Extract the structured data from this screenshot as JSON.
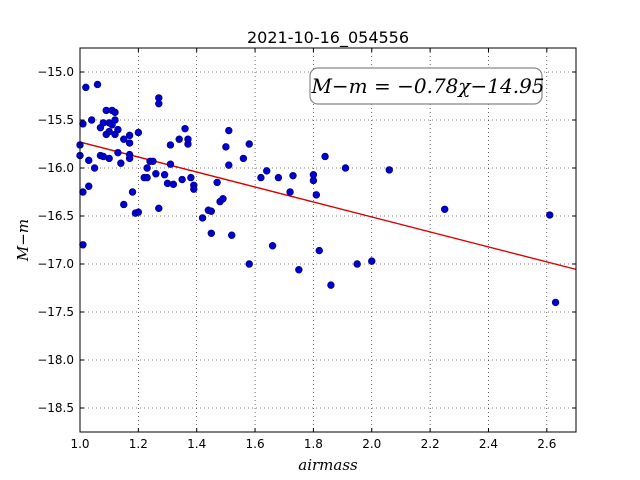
{
  "chart_data": {
    "type": "scatter",
    "title": "2021-10-16_054556",
    "xlabel": "airmass",
    "ylabel": "M−m",
    "xlim": [
      1.0,
      2.7
    ],
    "ylim": [
      -18.75,
      -14.75
    ],
    "y_inverted": true,
    "grid": true,
    "xticks": [
      1.0,
      1.2,
      1.4,
      1.6,
      1.8,
      2.0,
      2.2,
      2.4,
      2.6
    ],
    "yticks": [
      -15.0,
      -15.5,
      -16.0,
      -16.5,
      -17.0,
      -17.5,
      -18.0,
      -18.5
    ],
    "xtick_labels": [
      "1.0",
      "1.2",
      "1.4",
      "1.6",
      "1.8",
      "2.0",
      "2.2",
      "2.4",
      "2.6"
    ],
    "ytick_labels": [
      "−15.0",
      "−15.5",
      "−16.0",
      "−16.5",
      "−17.0",
      "−17.5",
      "−18.0",
      "−18.5"
    ],
    "annotation": "M−m = −0.78χ−14.95",
    "annotation_placement": "top-right",
    "fit": {
      "slope": -0.78,
      "intercept": -14.95,
      "x_range": [
        1.0,
        2.7
      ],
      "color": "#dd0000"
    },
    "marker_color": "#0000cc",
    "points": [
      {
        "x": 1.0,
        "y": -15.87
      },
      {
        "x": 1.0,
        "y": -15.76
      },
      {
        "x": 1.01,
        "y": -15.54
      },
      {
        "x": 1.01,
        "y": -16.8
      },
      {
        "x": 1.01,
        "y": -16.25
      },
      {
        "x": 1.02,
        "y": -15.16
      },
      {
        "x": 1.03,
        "y": -16.19
      },
      {
        "x": 1.03,
        "y": -15.92
      },
      {
        "x": 1.04,
        "y": -15.5
      },
      {
        "x": 1.05,
        "y": -16.0
      },
      {
        "x": 1.06,
        "y": -15.13
      },
      {
        "x": 1.07,
        "y": -15.87
      },
      {
        "x": 1.07,
        "y": -15.58
      },
      {
        "x": 1.08,
        "y": -15.53
      },
      {
        "x": 1.08,
        "y": -15.88
      },
      {
        "x": 1.09,
        "y": -15.65
      },
      {
        "x": 1.09,
        "y": -15.4
      },
      {
        "x": 1.1,
        "y": -15.53
      },
      {
        "x": 1.1,
        "y": -15.9
      },
      {
        "x": 1.1,
        "y": -15.62
      },
      {
        "x": 1.11,
        "y": -15.55
      },
      {
        "x": 1.11,
        "y": -15.4
      },
      {
        "x": 1.12,
        "y": -15.42
      },
      {
        "x": 1.12,
        "y": -15.5
      },
      {
        "x": 1.12,
        "y": -15.65
      },
      {
        "x": 1.13,
        "y": -15.6
      },
      {
        "x": 1.13,
        "y": -15.84
      },
      {
        "x": 1.14,
        "y": -15.95
      },
      {
        "x": 1.15,
        "y": -16.38
      },
      {
        "x": 1.15,
        "y": -15.7
      },
      {
        "x": 1.17,
        "y": -15.86
      },
      {
        "x": 1.17,
        "y": -15.9
      },
      {
        "x": 1.17,
        "y": -15.66
      },
      {
        "x": 1.17,
        "y": -15.74
      },
      {
        "x": 1.18,
        "y": -16.25
      },
      {
        "x": 1.19,
        "y": -16.47
      },
      {
        "x": 1.2,
        "y": -16.46
      },
      {
        "x": 1.2,
        "y": -15.63
      },
      {
        "x": 1.22,
        "y": -16.1
      },
      {
        "x": 1.23,
        "y": -16.1
      },
      {
        "x": 1.23,
        "y": -16.0
      },
      {
        "x": 1.24,
        "y": -15.93
      },
      {
        "x": 1.25,
        "y": -15.93
      },
      {
        "x": 1.26,
        "y": -16.06
      },
      {
        "x": 1.27,
        "y": -16.42
      },
      {
        "x": 1.27,
        "y": -15.27
      },
      {
        "x": 1.27,
        "y": -15.33
      },
      {
        "x": 1.29,
        "y": -16.07
      },
      {
        "x": 1.3,
        "y": -16.16
      },
      {
        "x": 1.31,
        "y": -15.96
      },
      {
        "x": 1.31,
        "y": -15.76
      },
      {
        "x": 1.32,
        "y": -16.17
      },
      {
        "x": 1.34,
        "y": -15.7
      },
      {
        "x": 1.35,
        "y": -16.12
      },
      {
        "x": 1.36,
        "y": -15.59
      },
      {
        "x": 1.37,
        "y": -15.75
      },
      {
        "x": 1.37,
        "y": -15.7
      },
      {
        "x": 1.38,
        "y": -16.1
      },
      {
        "x": 1.39,
        "y": -16.18
      },
      {
        "x": 1.39,
        "y": -16.22
      },
      {
        "x": 1.42,
        "y": -16.52
      },
      {
        "x": 1.44,
        "y": -16.44
      },
      {
        "x": 1.45,
        "y": -16.45
      },
      {
        "x": 1.45,
        "y": -16.68
      },
      {
        "x": 1.47,
        "y": -16.15
      },
      {
        "x": 1.48,
        "y": -16.35
      },
      {
        "x": 1.49,
        "y": -16.32
      },
      {
        "x": 1.5,
        "y": -15.78
      },
      {
        "x": 1.51,
        "y": -15.61
      },
      {
        "x": 1.51,
        "y": -15.97
      },
      {
        "x": 1.52,
        "y": -16.7
      },
      {
        "x": 1.56,
        "y": -15.9
      },
      {
        "x": 1.58,
        "y": -17.0
      },
      {
        "x": 1.58,
        "y": -15.75
      },
      {
        "x": 1.62,
        "y": -16.1
      },
      {
        "x": 1.64,
        "y": -16.03
      },
      {
        "x": 1.66,
        "y": -16.81
      },
      {
        "x": 1.68,
        "y": -16.1
      },
      {
        "x": 1.72,
        "y": -16.25
      },
      {
        "x": 1.73,
        "y": -16.08
      },
      {
        "x": 1.75,
        "y": -17.06
      },
      {
        "x": 1.8,
        "y": -16.07
      },
      {
        "x": 1.8,
        "y": -16.13
      },
      {
        "x": 1.81,
        "y": -16.28
      },
      {
        "x": 1.82,
        "y": -16.86
      },
      {
        "x": 1.84,
        "y": -15.88
      },
      {
        "x": 1.86,
        "y": -17.22
      },
      {
        "x": 1.91,
        "y": -16.0
      },
      {
        "x": 1.95,
        "y": -17.0
      },
      {
        "x": 2.0,
        "y": -16.97
      },
      {
        "x": 2.06,
        "y": -16.02
      },
      {
        "x": 2.25,
        "y": -16.43
      },
      {
        "x": 2.61,
        "y": -16.49
      },
      {
        "x": 2.63,
        "y": -17.4
      }
    ]
  }
}
